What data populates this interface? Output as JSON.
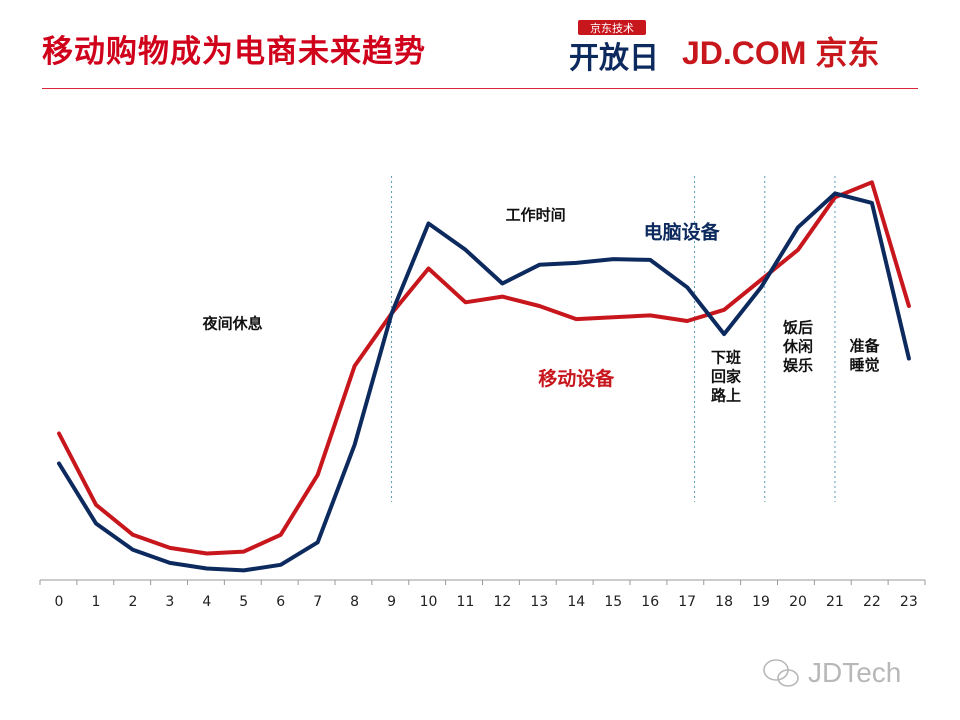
{
  "slide": {
    "title": "移动购物成为电商未来趋势",
    "logo_top_text": "京东技术",
    "logo_main_text": "开放日",
    "logo_brand_text": "JD.COM 京东",
    "watermark_text": "JDTech",
    "accent_color": "#d0021b",
    "navy_color": "#0d2a5e"
  },
  "chart_data": {
    "type": "line",
    "title": "",
    "xlabel": "",
    "ylabel": "",
    "categories": [
      "0",
      "1",
      "2",
      "3",
      "4",
      "5",
      "6",
      "7",
      "8",
      "9",
      "10",
      "11",
      "12",
      "13",
      "14",
      "15",
      "16",
      "17",
      "18",
      "19",
      "20",
      "21",
      "22",
      "23"
    ],
    "ylim": [
      0,
      100
    ],
    "grid": false,
    "series": [
      {
        "name": "移动设备",
        "color": "#c8161d",
        "values": [
          38,
          19,
          11,
          7.5,
          6,
          6.5,
          11,
          27,
          56,
          70,
          82,
          73,
          74.5,
          72,
          68.5,
          69,
          69.5,
          68,
          71,
          79,
          87,
          101,
          105,
          72
        ]
      },
      {
        "name": "电脑设备",
        "color": "#0d2a5e",
        "values": [
          30,
          14,
          7,
          3.5,
          2,
          1.5,
          3,
          9,
          35,
          70,
          94,
          87,
          78,
          83,
          83.5,
          84.5,
          84.3,
          77,
          64.5,
          77,
          93,
          102,
          99.5,
          58
        ]
      }
    ],
    "period_dividers": [
      9,
      17.2,
      19.1,
      21
    ],
    "period_labels": [
      {
        "text": "夜间休息",
        "x": 4.7,
        "y": 66
      },
      {
        "text": "工作时间",
        "x": 12.9,
        "y": 95
      },
      {
        "text": "下班\n回家\n路上",
        "x": 18.05,
        "y": 57
      },
      {
        "text": "饭后\n休闲\n娱乐",
        "x": 20,
        "y": 65
      },
      {
        "text": "准备\n睡觉",
        "x": 21.8,
        "y": 60
      }
    ],
    "series_labels": [
      {
        "text": "移动设备",
        "x": 14,
        "y": 51,
        "color": "#c8161d"
      },
      {
        "text": "电脑设备",
        "x": 16.85,
        "y": 90,
        "color": "#0d2a5e"
      }
    ]
  }
}
